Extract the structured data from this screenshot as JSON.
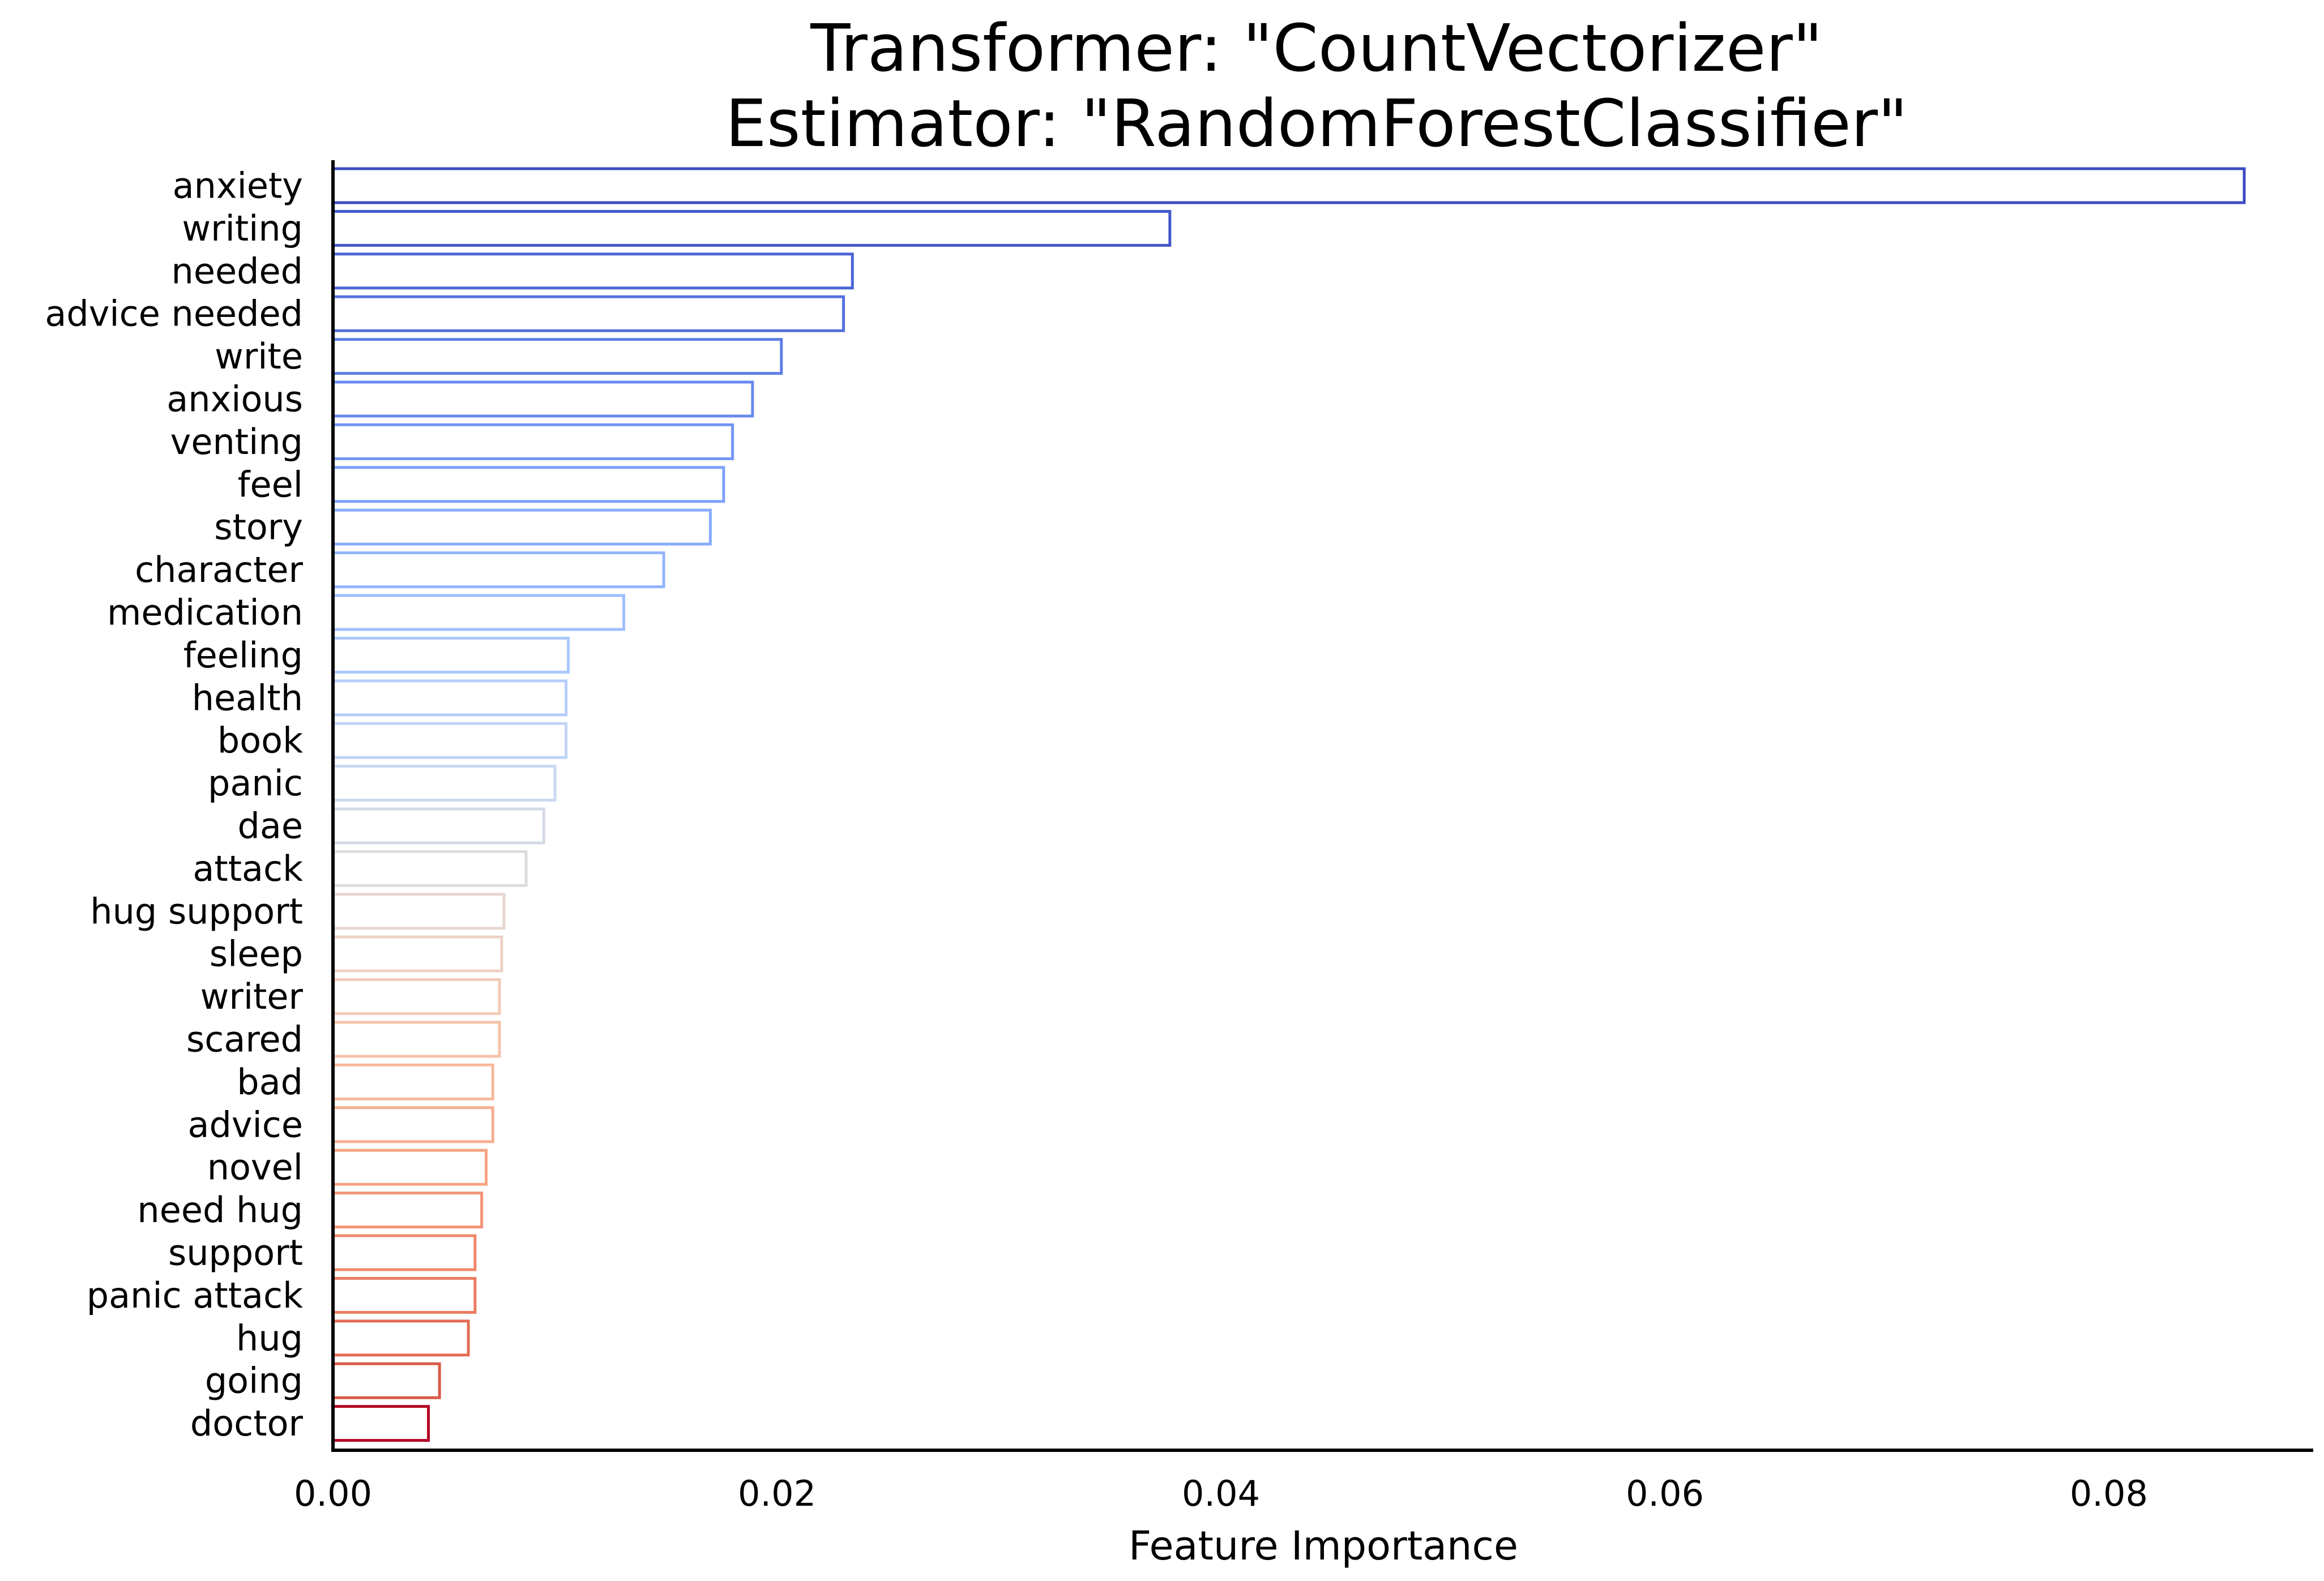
{
  "chart_data": {
    "type": "bar",
    "orientation": "horizontal",
    "title_lines": [
      "Transformer: \"CountVectorizer\"",
      "Estimator: \"RandomForestClassifier\""
    ],
    "xlabel": "Feature Importance",
    "ylabel": "",
    "xlim": [
      0,
      0.09
    ],
    "xticks": [
      0.0,
      0.02,
      0.04,
      0.06,
      0.08
    ],
    "xtick_labels": [
      "0.00",
      "0.02",
      "0.04",
      "0.06",
      "0.08"
    ],
    "grid": false,
    "colormap": "coolwarm",
    "categories": [
      "anxiety",
      "writing",
      "needed",
      "advice needed",
      "write",
      "anxious",
      "venting",
      "feel",
      "story",
      "character",
      "medication",
      "feeling",
      "health",
      "book",
      "panic",
      "dae",
      "attack",
      "hug support",
      "sleep",
      "writer",
      "scared",
      "bad",
      "advice",
      "novel",
      "need hug",
      "support",
      "panic attack",
      "hug",
      "going",
      "doctor"
    ],
    "values": [
      0.0861,
      0.0377,
      0.0234,
      0.023,
      0.0202,
      0.0189,
      0.018,
      0.0176,
      0.017,
      0.0149,
      0.0131,
      0.0106,
      0.0105,
      0.0105,
      0.01,
      0.0095,
      0.0087,
      0.0077,
      0.0076,
      0.0075,
      0.0075,
      0.0072,
      0.0072,
      0.0069,
      0.0067,
      0.0064,
      0.0064,
      0.0061,
      0.0048,
      0.0043
    ],
    "colors": [
      "#3b4cc0",
      "#4257c9",
      "#4b64d5",
      "#5470de",
      "#5e7de7",
      "#6889ee",
      "#7295f4",
      "#7da0f9",
      "#88abfd",
      "#93b5fe",
      "#9ebeff",
      "#aac7fd",
      "#b5cdfa",
      "#c0d4f5",
      "#cad8ef",
      "#d4dbe6",
      "#dddcdc",
      "#e6d7cf",
      "#edd1c2",
      "#f2cab5",
      "#f5c1a9",
      "#f7b89c",
      "#f7ad90",
      "#f6a283",
      "#f39577",
      "#ef886b",
      "#ea7b60",
      "#e36c55",
      "#da5a49",
      "#b40426"
    ]
  }
}
